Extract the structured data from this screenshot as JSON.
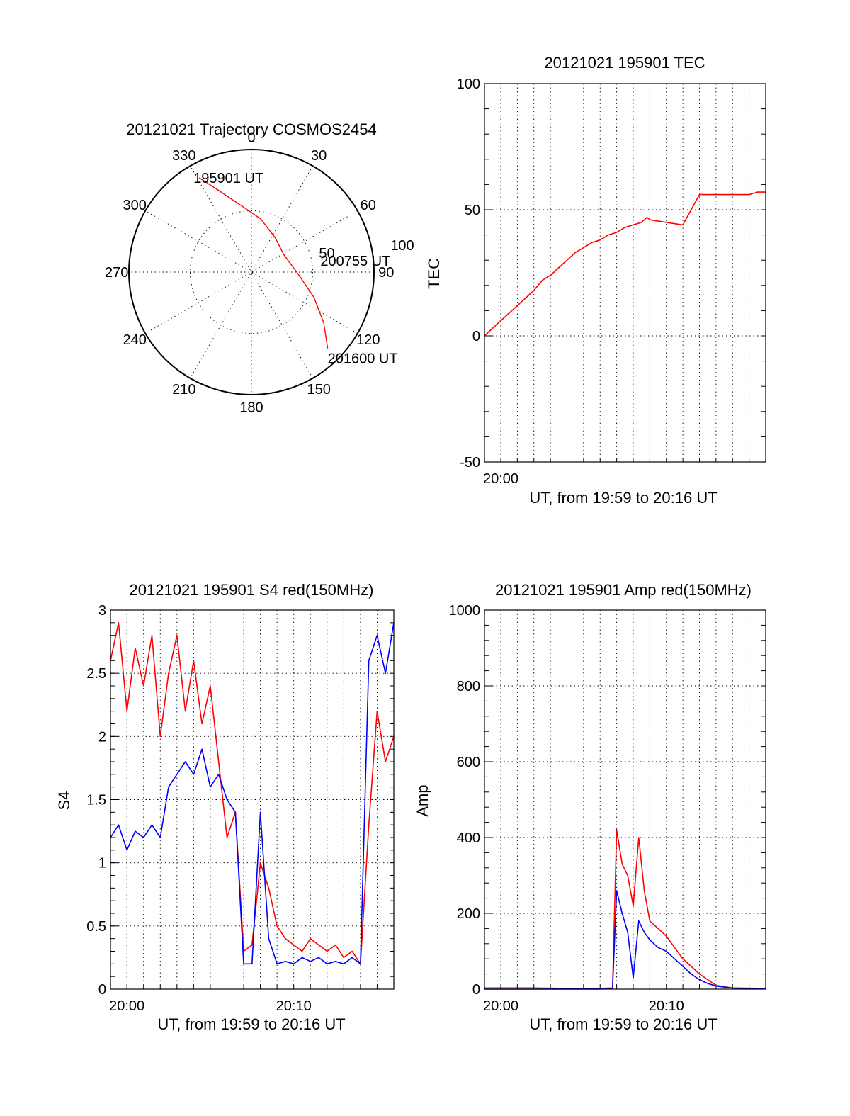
{
  "chart_data": [
    {
      "type": "polar",
      "title": "20121021 Trajectory COSMOS2454",
      "azimuth_labels": [
        "0",
        "30",
        "60",
        "90",
        "120",
        "150",
        "180",
        "210",
        "240",
        "270",
        "300",
        "330"
      ],
      "radial_labels": [
        "50",
        "100"
      ],
      "rlim": [
        0,
        100
      ],
      "series": [
        {
          "color": "#ff0000",
          "points": [
            {
              "az": 331,
              "r": 88
            },
            {
              "az": 338,
              "r": 72
            },
            {
              "az": 350,
              "r": 56
            },
            {
              "az": 10,
              "r": 44
            },
            {
              "az": 35,
              "r": 34
            },
            {
              "az": 62,
              "r": 30
            },
            {
              "az": 92,
              "r": 38
            },
            {
              "az": 112,
              "r": 55
            },
            {
              "az": 125,
              "r": 72
            },
            {
              "az": 135,
              "r": 88
            }
          ]
        }
      ],
      "annotations": [
        {
          "label": "195901 UT",
          "az": 331,
          "r": 88
        },
        {
          "label": "200755 UT",
          "az": 72,
          "r": 30
        },
        {
          "label": "201600 UT",
          "az": 135,
          "r": 88
        }
      ]
    },
    {
      "type": "line",
      "title": "20121021 195901 TEC",
      "xlabel": "UT, from 19:59 to 20:16 UT",
      "ylabel": "TEC",
      "xlim": [
        "19:59:01",
        "20:16:00"
      ],
      "ylim": [
        -50,
        100
      ],
      "x_ticks": [
        "20:00"
      ],
      "y_ticks": [
        -50,
        0,
        50,
        100
      ],
      "grid": true,
      "series": [
        {
          "color": "#ff0000",
          "x": [
            "19:59:01",
            "19:59:30",
            "20:00:00",
            "20:00:30",
            "20:01:00",
            "20:01:30",
            "20:02:00",
            "20:02:30",
            "20:03:00",
            "20:03:30",
            "20:04:00",
            "20:04:30",
            "20:05:00",
            "20:05:30",
            "20:06:00",
            "20:06:30",
            "20:07:00",
            "20:07:30",
            "20:08:00",
            "20:08:30",
            "20:08:50",
            "20:09:00",
            "20:10:00",
            "20:11:00",
            "20:12:00",
            "20:13:00",
            "20:14:00",
            "20:15:00",
            "20:15:30",
            "20:16:00"
          ],
          "y": [
            0,
            3,
            6,
            9,
            12,
            15,
            18,
            22,
            24,
            27,
            30,
            33,
            35,
            37,
            38,
            40,
            41,
            43,
            44,
            45,
            47,
            46,
            45,
            44,
            56,
            56,
            56,
            56,
            57,
            57
          ]
        }
      ]
    },
    {
      "type": "line",
      "title": "20121021 195901 S4 red(150MHz)",
      "xlabel": "UT, from 19:59 to 20:16 UT",
      "ylabel": "S4",
      "xlim": [
        "19:59:01",
        "20:16:00"
      ],
      "ylim": [
        0,
        3
      ],
      "x_ticks": [
        "20:00",
        "20:10"
      ],
      "y_ticks": [
        0,
        0.5,
        1,
        1.5,
        2,
        2.5,
        3
      ],
      "grid": true,
      "series": [
        {
          "color": "#ff0000",
          "x": [
            "19:59:01",
            "19:59:30",
            "20:00:00",
            "20:00:30",
            "20:01:00",
            "20:01:30",
            "20:02:00",
            "20:02:30",
            "20:03:00",
            "20:03:30",
            "20:04:00",
            "20:04:30",
            "20:05:00",
            "20:05:30",
            "20:06:00",
            "20:06:30",
            "20:07:00",
            "20:07:30",
            "20:08:00",
            "20:08:30",
            "20:09:00",
            "20:09:30",
            "20:10:00",
            "20:10:30",
            "20:11:00",
            "20:11:30",
            "20:12:00",
            "20:12:30",
            "20:13:00",
            "20:13:30",
            "20:14:00",
            "20:14:30",
            "20:15:00",
            "20:15:30",
            "20:16:00"
          ],
          "y": [
            2.6,
            2.9,
            2.2,
            2.7,
            2.4,
            2.8,
            2.0,
            2.5,
            2.8,
            2.2,
            2.6,
            2.1,
            2.4,
            1.8,
            1.2,
            1.4,
            0.3,
            0.35,
            1.0,
            0.8,
            0.5,
            0.4,
            0.35,
            0.3,
            0.4,
            0.35,
            0.3,
            0.35,
            0.25,
            0.3,
            0.2,
            1.3,
            2.2,
            1.8,
            2.0
          ]
        },
        {
          "color": "#0000ff",
          "x": [
            "19:59:01",
            "19:59:30",
            "20:00:00",
            "20:00:30",
            "20:01:00",
            "20:01:30",
            "20:02:00",
            "20:02:30",
            "20:03:00",
            "20:03:30",
            "20:04:00",
            "20:04:30",
            "20:05:00",
            "20:05:30",
            "20:06:00",
            "20:06:30",
            "20:07:00",
            "20:07:30",
            "20:08:00",
            "20:08:30",
            "20:09:00",
            "20:09:30",
            "20:10:00",
            "20:10:30",
            "20:11:00",
            "20:11:30",
            "20:12:00",
            "20:12:30",
            "20:13:00",
            "20:13:30",
            "20:14:00",
            "20:14:30",
            "20:15:00",
            "20:15:30",
            "20:16:00"
          ],
          "y": [
            1.2,
            1.3,
            1.1,
            1.25,
            1.2,
            1.3,
            1.2,
            1.6,
            1.7,
            1.8,
            1.7,
            1.9,
            1.6,
            1.7,
            1.5,
            1.4,
            0.2,
            0.2,
            1.4,
            0.4,
            0.2,
            0.22,
            0.2,
            0.25,
            0.22,
            0.25,
            0.2,
            0.22,
            0.2,
            0.25,
            0.2,
            2.6,
            2.8,
            2.5,
            2.9
          ]
        }
      ]
    },
    {
      "type": "line",
      "title": "20121021 195901 Amp red(150MHz)",
      "xlabel": "UT, from 19:59 to 20:16 UT",
      "ylabel": "Amp",
      "xlim": [
        "19:59:01",
        "20:16:00"
      ],
      "ylim": [
        0,
        1000
      ],
      "x_ticks": [
        "20:00",
        "20:10"
      ],
      "y_ticks": [
        0,
        200,
        400,
        600,
        800,
        1000
      ],
      "grid": true,
      "series": [
        {
          "color": "#ff0000",
          "x": [
            "19:59:01",
            "20:00:00",
            "20:02:00",
            "20:04:00",
            "20:06:00",
            "20:06:45",
            "20:07:00",
            "20:07:20",
            "20:07:40",
            "20:08:00",
            "20:08:20",
            "20:08:40",
            "20:09:00",
            "20:09:30",
            "20:10:00",
            "20:10:30",
            "20:11:00",
            "20:11:30",
            "20:12:00",
            "20:12:30",
            "20:13:00",
            "20:14:00",
            "20:16:00"
          ],
          "y": [
            0,
            0,
            0,
            0,
            0,
            2,
            420,
            330,
            300,
            220,
            400,
            260,
            180,
            160,
            140,
            110,
            80,
            60,
            40,
            25,
            10,
            3,
            1
          ]
        },
        {
          "color": "#0000ff",
          "x": [
            "19:59:01",
            "20:00:00",
            "20:02:00",
            "20:04:00",
            "20:06:00",
            "20:06:45",
            "20:07:00",
            "20:07:20",
            "20:07:40",
            "20:08:00",
            "20:08:20",
            "20:08:40",
            "20:09:00",
            "20:09:30",
            "20:10:00",
            "20:10:30",
            "20:11:00",
            "20:11:30",
            "20:12:00",
            "20:12:30",
            "20:13:00",
            "20:14:00",
            "20:16:00"
          ],
          "y": [
            3,
            3,
            3,
            2,
            2,
            3,
            260,
            200,
            150,
            30,
            180,
            150,
            130,
            110,
            100,
            80,
            60,
            40,
            25,
            15,
            8,
            3,
            2
          ]
        }
      ]
    }
  ]
}
